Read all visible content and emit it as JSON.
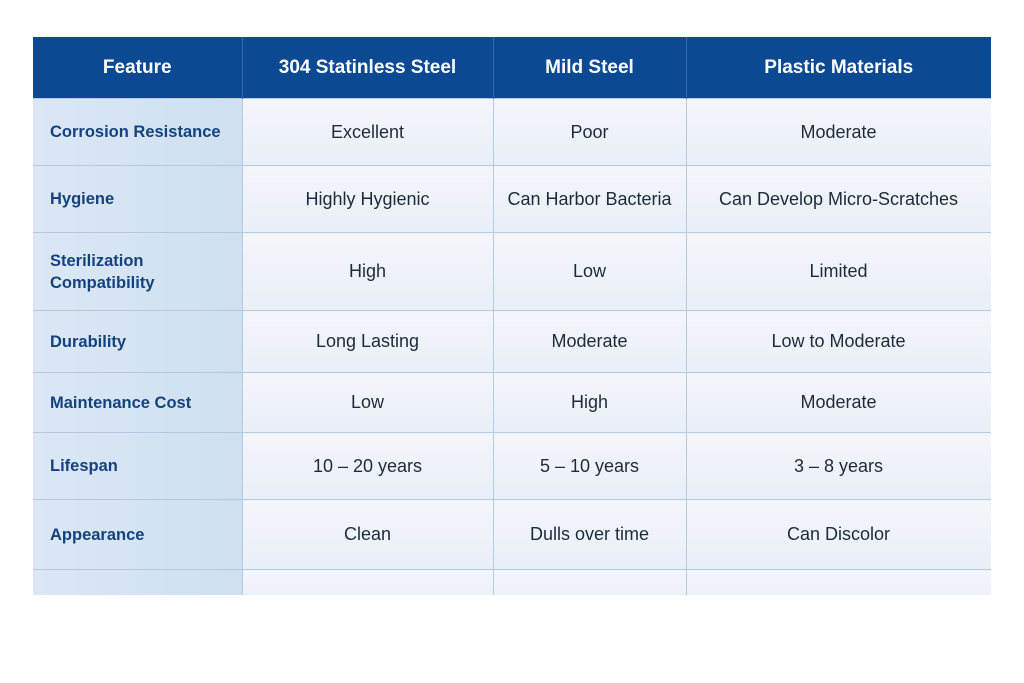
{
  "table": {
    "headers": [
      "Feature",
      "304 Statinless Steel",
      "Mild Steel",
      "Plastic Materials"
    ],
    "rows": [
      {
        "feature": "Corrosion Resistance",
        "stainless": "Excellent",
        "mild": "Poor",
        "plastic": "Moderate"
      },
      {
        "feature": "Hygiene",
        "stainless": "Highly Hygienic",
        "mild": "Can Harbor Bacteria",
        "plastic": "Can Develop Micro-Scratches"
      },
      {
        "feature": "Sterilization Compatibility",
        "stainless": "High",
        "mild": "Low",
        "plastic": "Limited"
      },
      {
        "feature": "Durability",
        "stainless": "Long Lasting",
        "mild": "Moderate",
        "plastic": "Low to Moderate"
      },
      {
        "feature": "Maintenance Cost",
        "stainless": "Low",
        "mild": "High",
        "plastic": "Moderate"
      },
      {
        "feature": "Lifespan",
        "stainless": "10 – 20 years",
        "mild": "5 – 10 years",
        "plastic": "3 – 8 years"
      },
      {
        "feature": "Appearance",
        "stainless": "Clean",
        "mild": "Dulls over time",
        "plastic": "Can Discolor"
      },
      {
        "feature": "",
        "stainless": "",
        "mild": "",
        "plastic": ""
      }
    ]
  },
  "colors": {
    "header_bg": "#0b4a92",
    "header_text": "#ffffff",
    "feature_text": "#14427f",
    "feature_bg": "#d6e4f3",
    "cell_bg": "#eef3f9",
    "border": "#b5c9e0"
  }
}
